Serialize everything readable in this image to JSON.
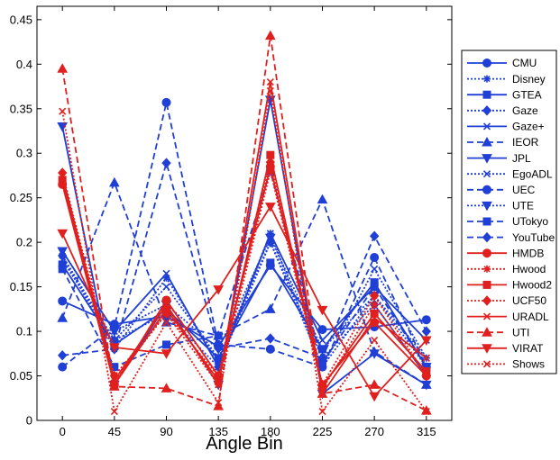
{
  "chart_data": {
    "type": "line",
    "title": "",
    "xlabel": "Angle Bin",
    "ylabel": "",
    "x": [
      0,
      45,
      90,
      135,
      180,
      225,
      270,
      315
    ],
    "xticks": [
      "0",
      "45",
      "90",
      "135",
      "180",
      "225",
      "270",
      "315"
    ],
    "yticks": [
      "0",
      "0.05",
      "0.1",
      "0.15",
      "0.2",
      "0.25",
      "0.3",
      "0.35",
      "0.4",
      "0.45"
    ],
    "xlim": [
      -22,
      337
    ],
    "ylim": [
      0,
      0.465
    ],
    "grid": false,
    "legend_position": "right",
    "series": [
      {
        "name": "CMU",
        "color": "#1f3fd6",
        "dash": "solid",
        "marker": "circle",
        "values": [
          0.134,
          0.108,
          0.117,
          0.083,
          0.174,
          0.102,
          0.105,
          0.113
        ]
      },
      {
        "name": "Disney",
        "color": "#1f3fd6",
        "dash": "dotted",
        "marker": "asterisk",
        "values": [
          0.185,
          0.08,
          0.16,
          0.065,
          0.21,
          0.06,
          0.14,
          0.07
        ]
      },
      {
        "name": "GTEA",
        "color": "#1f3fd6",
        "dash": "solid",
        "marker": "square",
        "values": [
          0.175,
          0.085,
          0.125,
          0.07,
          0.177,
          0.08,
          0.155,
          0.06
        ]
      },
      {
        "name": "Gaze",
        "color": "#1f3fd6",
        "dash": "dotted",
        "marker": "diamond",
        "values": [
          0.185,
          0.09,
          0.12,
          0.06,
          0.2,
          0.07,
          0.13,
          0.05
        ]
      },
      {
        "name": "Gaze+",
        "color": "#1f3fd6",
        "dash": "solid",
        "marker": "x",
        "values": [
          0.19,
          0.1,
          0.165,
          0.06,
          0.21,
          0.09,
          0.15,
          0.09
        ]
      },
      {
        "name": "IEOR",
        "color": "#1f3fd6",
        "dash": "dashed",
        "marker": "triangle-up",
        "values": [
          0.115,
          0.267,
          0.11,
          0.095,
          0.125,
          0.248,
          0.077,
          0.04
        ]
      },
      {
        "name": "JPL",
        "color": "#1f3fd6",
        "dash": "solid",
        "marker": "triangle-down",
        "values": [
          0.33,
          0.04,
          0.13,
          0.04,
          0.36,
          0.03,
          0.075,
          0.04
        ]
      },
      {
        "name": "EgoADL",
        "color": "#1f3fd6",
        "dash": "dotted",
        "marker": "x",
        "values": [
          0.18,
          0.09,
          0.15,
          0.07,
          0.2,
          0.06,
          0.17,
          0.07
        ]
      },
      {
        "name": "UEC",
        "color": "#1f3fd6",
        "dash": "dashed",
        "marker": "circle",
        "values": [
          0.06,
          0.105,
          0.357,
          0.085,
          0.08,
          0.06,
          0.183,
          0.06
        ]
      },
      {
        "name": "UTE",
        "color": "#1f3fd6",
        "dash": "dotted",
        "marker": "triangle-down",
        "values": [
          0.19,
          0.1,
          0.13,
          0.08,
          0.205,
          0.08,
          0.14,
          0.06
        ]
      },
      {
        "name": "UTokyo",
        "color": "#1f3fd6",
        "dash": "dashed",
        "marker": "square",
        "values": [
          0.17,
          0.06,
          0.085,
          0.095,
          0.28,
          0.065,
          0.15,
          0.06
        ]
      },
      {
        "name": "YouTube",
        "color": "#1f3fd6",
        "dash": "dashed",
        "marker": "diamond",
        "values": [
          0.073,
          0.08,
          0.289,
          0.081,
          0.092,
          0.07,
          0.207,
          0.1
        ]
      },
      {
        "name": "HMDB",
        "color": "#e0201e",
        "dash": "solid",
        "marker": "circle",
        "values": [
          0.265,
          0.04,
          0.135,
          0.05,
          0.285,
          0.04,
          0.11,
          0.05
        ]
      },
      {
        "name": "Hwood",
        "color": "#e0201e",
        "dash": "dotted",
        "marker": "asterisk",
        "values": [
          0.27,
          0.045,
          0.12,
          0.04,
          0.28,
          0.035,
          0.13,
          0.05
        ]
      },
      {
        "name": "Hwood2",
        "color": "#e0201e",
        "dash": "solid",
        "marker": "square",
        "values": [
          0.27,
          0.04,
          0.125,
          0.045,
          0.298,
          0.038,
          0.12,
          0.055
        ]
      },
      {
        "name": "UCF50",
        "color": "#e0201e",
        "dash": "dotted",
        "marker": "diamond",
        "values": [
          0.278,
          0.05,
          0.12,
          0.05,
          0.29,
          0.04,
          0.14,
          0.05
        ]
      },
      {
        "name": "URADL",
        "color": "#e0201e",
        "dash": "solid",
        "marker": "x",
        "values": [
          0.275,
          0.045,
          0.13,
          0.04,
          0.38,
          0.03,
          0.115,
          0.07
        ]
      },
      {
        "name": "UTI",
        "color": "#e0201e",
        "dash": "dashed",
        "marker": "triangle-up",
        "values": [
          0.395,
          0.038,
          0.036,
          0.016,
          0.432,
          0.03,
          0.04,
          0.011
        ]
      },
      {
        "name": "VIRAT",
        "color": "#e0201e",
        "dash": "solid",
        "marker": "triangle-down",
        "values": [
          0.21,
          0.082,
          0.075,
          0.147,
          0.24,
          0.124,
          0.027,
          0.09
        ]
      },
      {
        "name": "Shows",
        "color": "#e0201e",
        "dash": "dotted",
        "marker": "x",
        "values": [
          0.347,
          0.01,
          0.11,
          0.02,
          0.37,
          0.01,
          0.09,
          0.01
        ]
      }
    ]
  }
}
